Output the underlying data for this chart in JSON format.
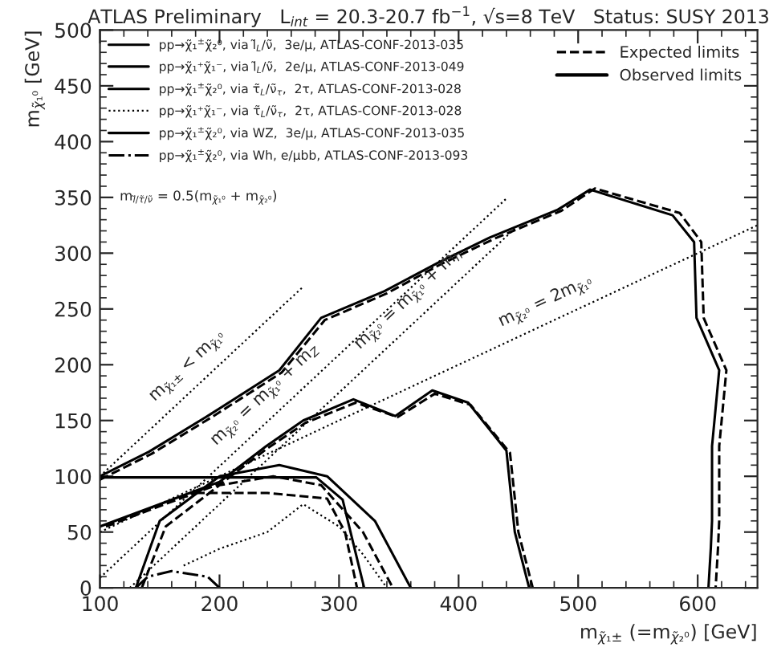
{
  "chart_data": {
    "type": "line",
    "title": "ATLAS Preliminary   L$_{int}$ = 20.3-20.7 fb$^{−1}$, √s=8 TeV   Status: SUSY 2013",
    "xlabel": "m$_{χ̃₁±}$ (=m$_{χ̃₂⁰}$) [GeV]",
    "ylabel": "m$_{χ̃₁⁰}$ [GeV]",
    "xlim": [
      100,
      650
    ],
    "xticks": [
      100,
      200,
      300,
      400,
      500,
      600
    ],
    "ylim": [
      0,
      500
    ],
    "yticks": [
      0,
      50,
      100,
      150,
      200,
      250,
      300,
      350,
      400,
      450,
      500
    ],
    "grid": false,
    "legend": "top left",
    "series": [
      {
        "name": "pp→χ̃₁$^{±}$χ̃₂⁰, via l̃$_{L}$/ν̃,  3e/μ, ATLAS-CONF-2013-035",
        "color": "#000000",
        "line_style": "solid",
        "x": [
          100,
          141,
          193,
          250,
          285,
          338,
          382,
          426,
          483,
          510,
          579,
          597,
          599,
          618,
          612,
          612,
          611,
          609
        ],
        "values": [
          100,
          122,
          156,
          195,
          242,
          266,
          291,
          314,
          339,
          357,
          334,
          310,
          242,
          195,
          127,
          60,
          36,
          0
        ]
      },
      {
        "name": "Expected limits",
        "color": "#000000",
        "line_style": "dashed",
        "x": [
          100,
          143,
          195,
          252,
          288,
          340,
          385,
          430,
          486,
          514,
          585,
          603,
          605,
          624,
          618,
          618,
          617,
          615
        ],
        "values": [
          97,
          120,
          154,
          193,
          240,
          264,
          290,
          313,
          338,
          358,
          336,
          310,
          242,
          195,
          127,
          60,
          36,
          0
        ]
      },
      {
        "name": "pp→χ̃₁⁺χ̃₁⁻, via l̃$_{L}$/ν̃,  2e/μ, ATLAS-CONF-2013-049",
        "color": "#000000",
        "line_style": "solid",
        "x": [
          100,
          150,
          200,
          239,
          270,
          312,
          347,
          378,
          408,
          440,
          447,
          459
        ],
        "values": [
          55,
          75,
          95,
          127,
          150,
          169,
          154,
          177,
          166,
          123,
          50,
          0
        ]
      },
      {
        "color": "#000000",
        "line_style": "dashed",
        "x": [
          105,
          152,
          202,
          240,
          272,
          314,
          349,
          380,
          410,
          443,
          450,
          462
        ],
        "values": [
          55,
          74,
          94,
          125,
          148,
          166,
          153,
          174,
          164,
          121,
          50,
          0
        ]
      },
      {
        "name": "pp→χ̃₁$^{±}$χ̃₂⁰, via τ̃$_{L}$/ν̃$_{τ}$,  2τ, ATLAS-CONF-2013-028",
        "color": "#000000",
        "line_style": "solid",
        "x": [
          130,
          150,
          200,
          250,
          290,
          330,
          360
        ],
        "values": [
          0,
          60,
          100,
          110,
          100,
          60,
          0
        ]
      },
      {
        "color": "#000000",
        "line_style": "dashed",
        "x": [
          135,
          155,
          200,
          245,
          285,
          320,
          345
        ],
        "values": [
          0,
          55,
          92,
          100,
          92,
          50,
          0
        ]
      },
      {
        "name": "pp→χ̃₁⁺χ̃₁⁻, via τ̃$_{L}$/ν̃$_{τ}$,  2τ, ATLAS-CONF-2013-028",
        "color": "#000000",
        "line_style": "dotted",
        "x": [
          170,
          200,
          240,
          270,
          300,
          320,
          340
        ],
        "values": [
          20,
          35,
          50,
          75,
          55,
          30,
          0
        ]
      },
      {
        "name": "pp→χ̃₁$^{±}$χ̃₂⁰, via WZ,  3e/μ, ATLAS-CONF-2013-035",
        "color": "#000000",
        "line_style": "solid",
        "x": [
          100,
          180,
          281,
          303,
          321
        ],
        "values": [
          99,
          99,
          99,
          79,
          0
        ]
      },
      {
        "color": "#000000",
        "line_style": "dashed",
        "x": [
          180,
          240,
          290,
          305,
          315
        ],
        "values": [
          85,
          85,
          80,
          50,
          0
        ]
      },
      {
        "name": "pp→χ̃₁$^{±}$χ̃₂⁰, via Wh, e/μbb, ATLAS-CONF-2013-093",
        "color": "#000000",
        "line_style": "dashdot",
        "x": [
          130,
          140,
          160,
          190,
          200
        ],
        "values": [
          0,
          10,
          15,
          10,
          0
        ]
      },
      {
        "color": "#000000",
        "line_style": "dotted",
        "x": [
          100,
          270
        ],
        "values": [
          100,
          270
        ]
      },
      {
        "color": "#000000",
        "line_style": "dotted",
        "x": [
          100,
          440
        ],
        "values": [
          9,
          349
        ]
      },
      {
        "color": "#000000",
        "line_style": "dotted",
        "x": [
          125,
          450
        ],
        "values": [
          0,
          325
        ]
      },
      {
        "color": "#000000",
        "line_style": "dotted",
        "x": [
          100,
          650
        ],
        "values": [
          50,
          325
        ]
      }
    ],
    "annotations": [
      "m$_{l̃/τ̃/ν̃}$ = 0.5(m$_{χ̃₁⁰}$ + m$_{χ̃₂⁰}$)",
      "Observed limits",
      {
        "text": "m$_{χ̃₁±}$ < m$_{χ̃₁⁰}$",
        "x": 185,
        "y": 185
      },
      {
        "text": "m$_{χ̃₂⁰}$ = m$_{χ̃₁⁰}$ + m$_{Z}$",
        "x": 250,
        "y": 159
      },
      {
        "text": "m$_{χ̃₂⁰}$ = m$_{χ̃₁⁰}$ + m$_{h}$",
        "x": 370,
        "y": 245
      },
      {
        "text": "m$_{χ̃₂⁰}$ = 2m$_{χ̃₁⁰}$",
        "x": 480,
        "y": 240
      }
    ]
  }
}
